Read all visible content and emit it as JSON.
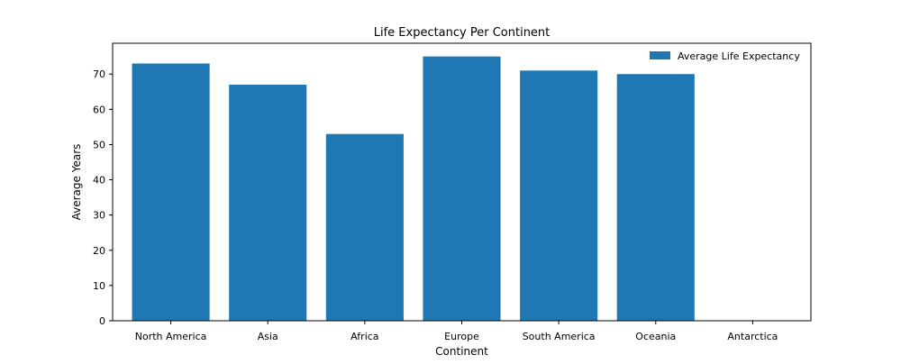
{
  "chart_data": {
    "type": "bar",
    "title": "Life Expectancy Per Continent",
    "xlabel": "Continent",
    "ylabel": "Average Years",
    "categories": [
      "North America",
      "Asia",
      "Africa",
      "Europe",
      "South America",
      "Oceania",
      "Antarctica"
    ],
    "series": [
      {
        "name": "Average Life Expectancy",
        "values": [
          73,
          67,
          53,
          75,
          71,
          70,
          0
        ]
      }
    ],
    "ylim": [
      0,
      78.75
    ],
    "yticks": [
      0,
      10,
      20,
      30,
      40,
      50,
      60,
      70
    ],
    "grid": false,
    "legend_position": "top-right",
    "colors": {
      "bar": "#1f77b4",
      "axis": "#000000"
    }
  }
}
